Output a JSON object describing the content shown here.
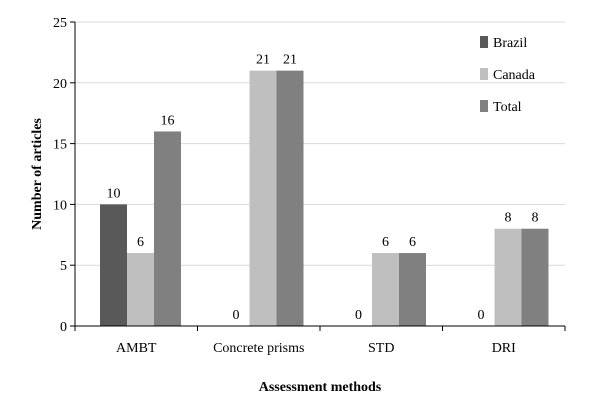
{
  "chart_data": {
    "type": "bar",
    "categories": [
      "AMBT",
      "Concrete prisms",
      "STD",
      "DRI"
    ],
    "series": [
      {
        "name": "Brazil",
        "values": [
          10,
          0,
          0,
          0
        ],
        "color": "#595959"
      },
      {
        "name": "Canada",
        "values": [
          6,
          21,
          6,
          8
        ],
        "color": "#bfbfbf"
      },
      {
        "name": "Total",
        "values": [
          16,
          21,
          6,
          8
        ],
        "color": "#808080"
      }
    ],
    "data_labels": [
      [
        "10",
        "0",
        "0",
        "0"
      ],
      [
        "6",
        "21",
        "6",
        "8"
      ],
      [
        "16",
        "21",
        "6",
        "8"
      ]
    ],
    "xlabel": "Assessment methods",
    "ylabel": "Number of articles",
    "ylim": [
      0,
      25
    ],
    "yticks": [
      "0",
      "5",
      "10",
      "15",
      "20",
      "25"
    ],
    "grid": true,
    "legend_position": "top-right"
  }
}
